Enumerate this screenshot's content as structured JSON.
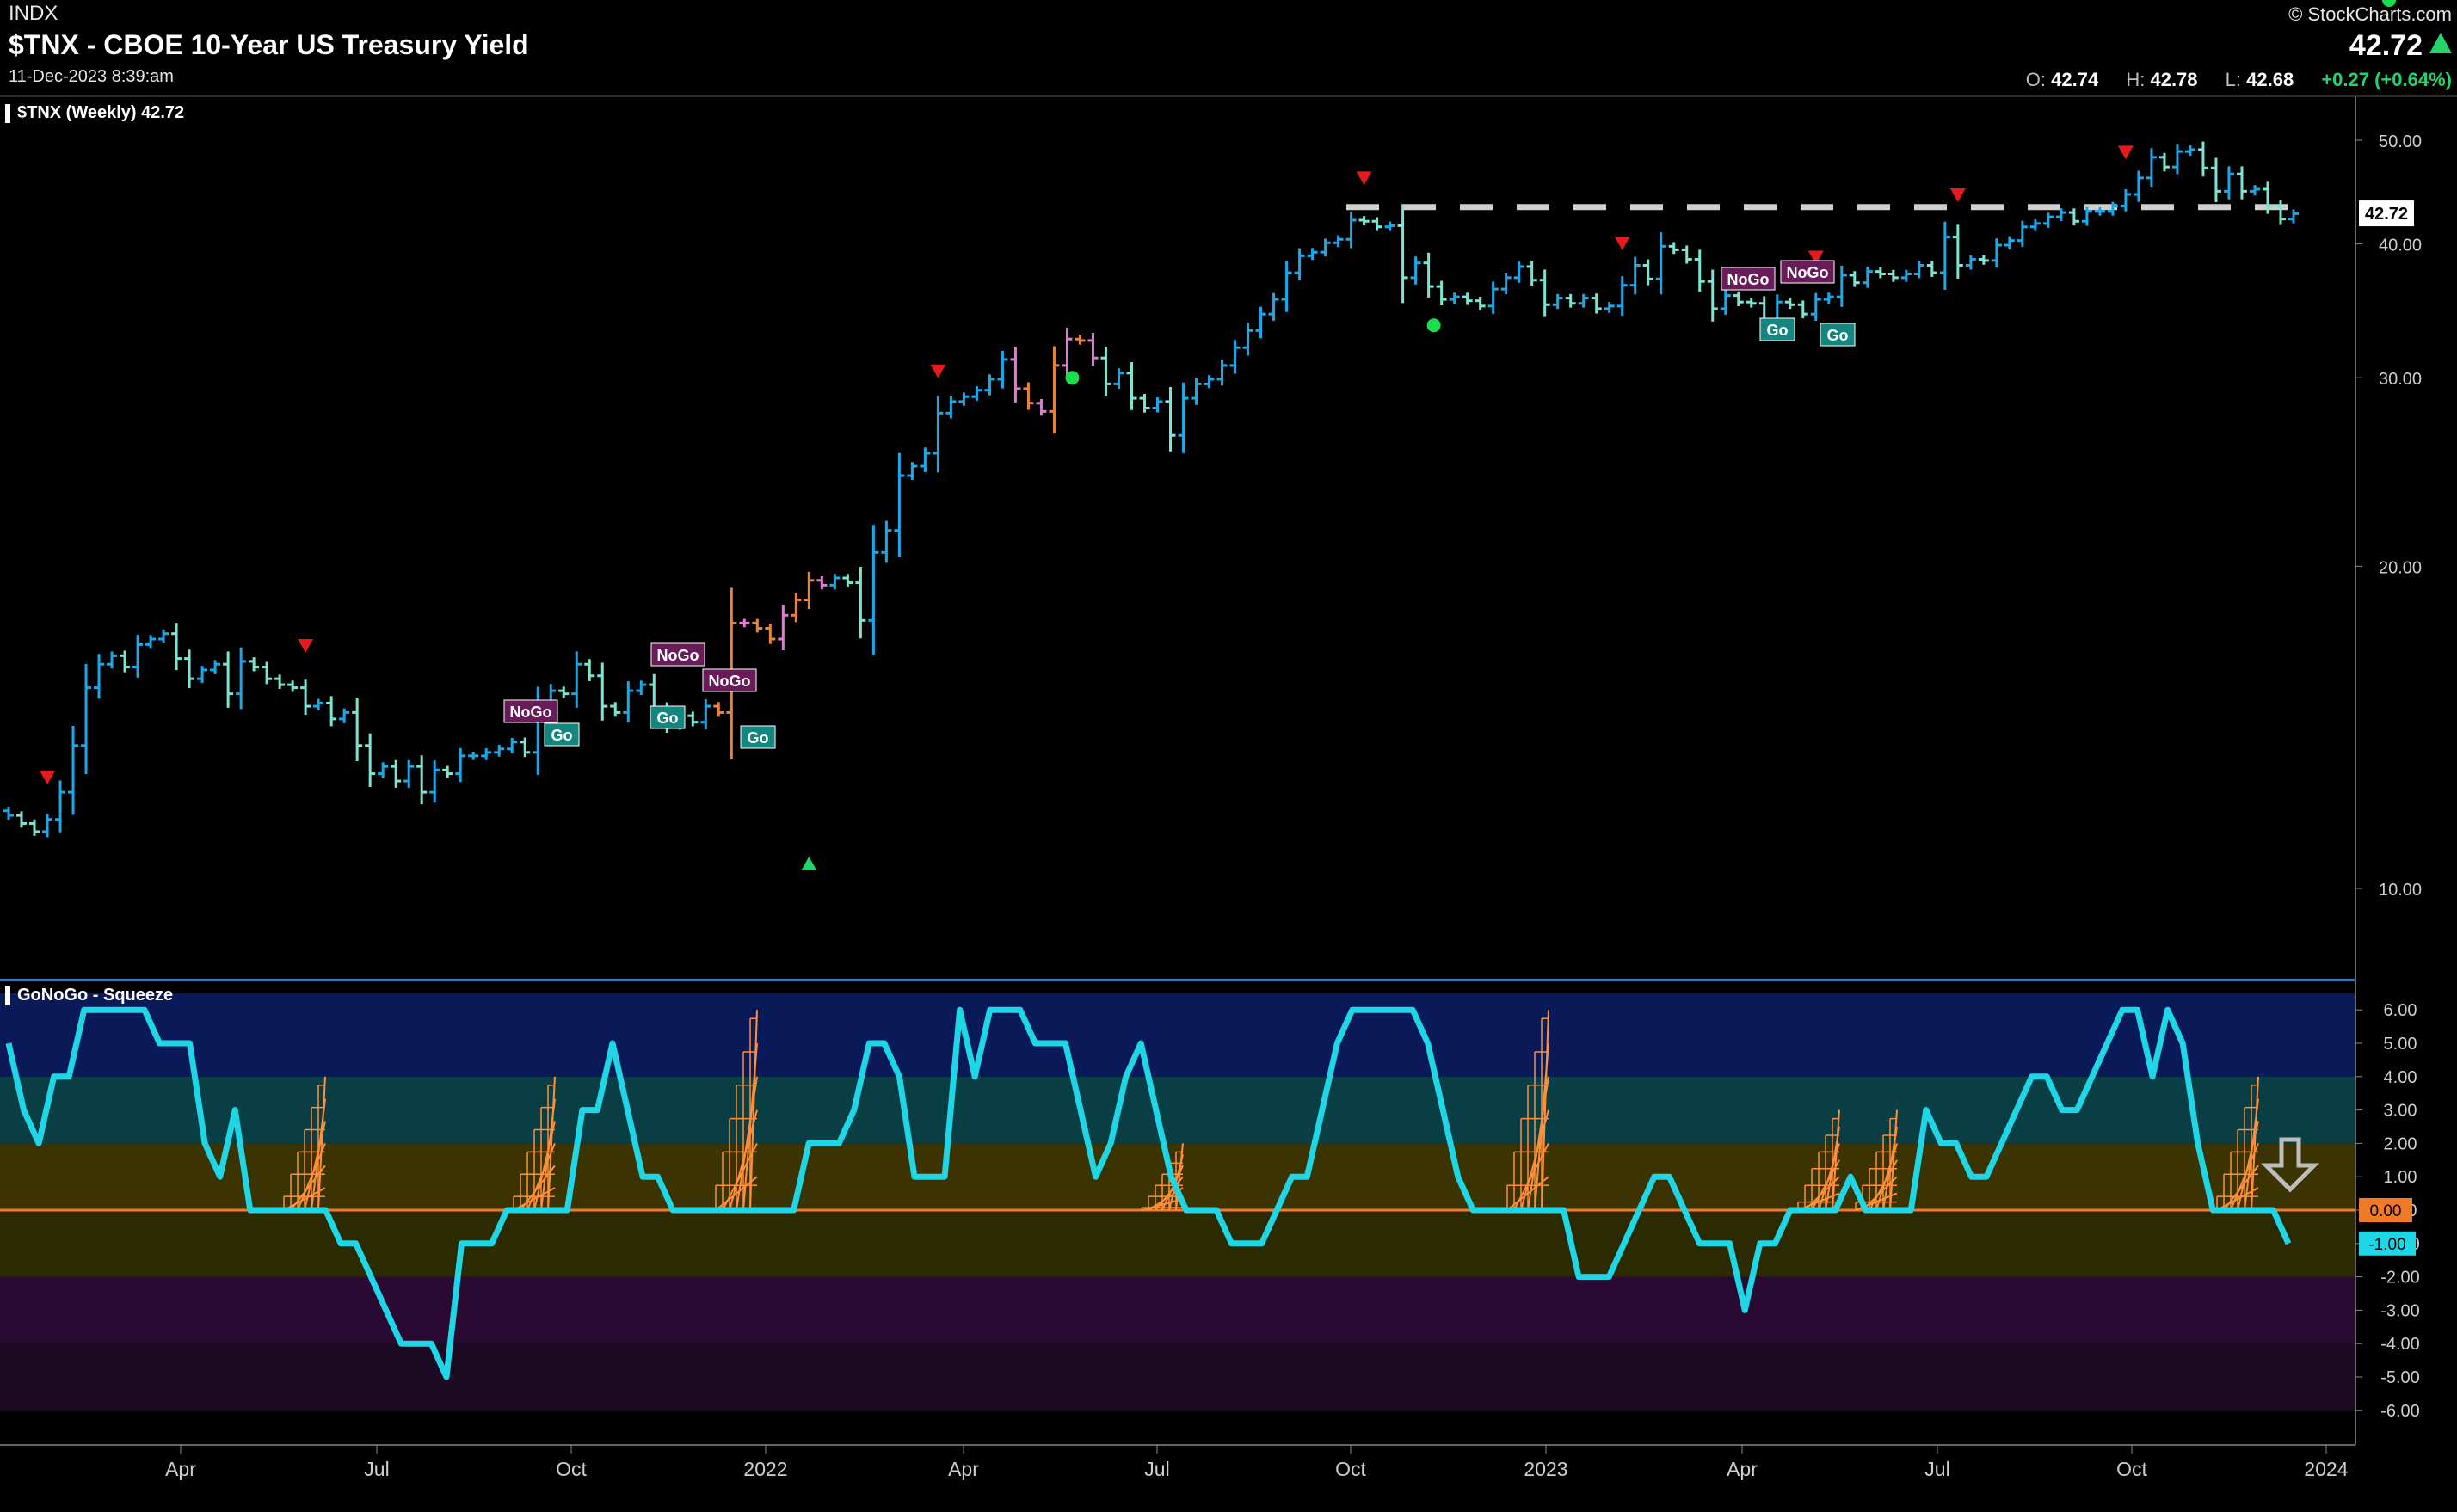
{
  "header": {
    "exchange": "INDX",
    "title": "$TNX - CBOE 10-Year US Treasury Yield",
    "timestamp": "11-Dec-2023 8:39:am",
    "brand": "© StockCharts.com",
    "last": "42.72",
    "open_label": "O:",
    "open": "42.74",
    "high_label": "H:",
    "high": "42.78",
    "low_label": "L:",
    "low": "42.68",
    "change": "+0.27 (+0.64%)"
  },
  "colors": {
    "go_strong": "#1aa8e8",
    "go_weak": "#7fe3d0",
    "nogo_weak": "#e8833a",
    "nogo_strong": "#e27ad6",
    "amber": "#ff8f3a",
    "osc": "#1fd6e6",
    "zero_line": "#f07a2a",
    "up_marker": "#22d46b",
    "down_marker": "#e51b1b",
    "go_dot": "#19e04a",
    "nogo_badge": "#6a1b5a",
    "go_badge": "#13877f",
    "resistance": "#cfcfcf"
  },
  "chart_data": [
    {
      "type": "candlestick",
      "label": "$TNX (Weekly) 42.72",
      "title": "$TNX - CBOE 10-Year US Treasury Yield",
      "log_scale": true,
      "yticks": [
        10,
        20,
        30,
        40,
        50
      ],
      "ytick_labels": [
        "10.00",
        "20.00",
        "30.00",
        "40.00",
        "50.00"
      ],
      "last_label": "42.72",
      "xticks": [
        "Apr",
        "Jul",
        "Oct",
        "2022",
        "Apr",
        "Jul",
        "Oct",
        "2023",
        "Apr",
        "Jul",
        "Oct",
        "2024"
      ],
      "resistance_level": 43.3,
      "closes": [
        11.7,
        11.5,
        11.3,
        11.6,
        12.3,
        13.6,
        15.4,
        16.2,
        16.5,
        16.1,
        16.9,
        17.1,
        17.3,
        16.4,
        15.7,
        16.0,
        16.2,
        15.2,
        16.3,
        16.1,
        15.7,
        15.5,
        15.4,
        14.8,
        14.9,
        14.4,
        14.6,
        13.6,
        12.8,
        13.0,
        12.6,
        13.0,
        12.3,
        12.9,
        12.8,
        13.3,
        13.3,
        13.4,
        13.5,
        13.7,
        13.4,
        14.8,
        15.3,
        15.2,
        16.2,
        15.8,
        14.8,
        14.6,
        15.3,
        15.5,
        14.7,
        14.2,
        14.5,
        14.3,
        14.8,
        14.6,
        17.7,
        17.7,
        17.5,
        17.1,
        18.0,
        18.6,
        19.4,
        19.2,
        19.5,
        19.3,
        17.8,
        20.6,
        21.6,
        24.3,
        24.8,
        25.5,
        27.8,
        28.5,
        28.8,
        29.2,
        29.9,
        31.2,
        29.3,
        28.4,
        27.9,
        30.8,
        32.6,
        32.5,
        31.3,
        29.6,
        30.3,
        28.7,
        28.1,
        28.5,
        26.5,
        28.7,
        29.6,
        29.9,
        30.8,
        32.0,
        33.2,
        34.4,
        35.5,
        37.6,
        39.0,
        39.3,
        40.1,
        40.4,
        42.1,
        42.0,
        41.5,
        41.6,
        37.2,
        38.4,
        36.5,
        35.5,
        35.7,
        35.4,
        35.0,
        36.3,
        37.2,
        38.1,
        37.0,
        35.1,
        35.6,
        35.2,
        35.6,
        34.8,
        35.0,
        36.6,
        38.2,
        37.1,
        39.8,
        39.5,
        38.7,
        36.9,
        34.8,
        35.8,
        35.3,
        35.2,
        34.0,
        35.3,
        35.1,
        34.4,
        35.5,
        35.7,
        37.4,
        36.8,
        37.7,
        37.5,
        37.2,
        37.5,
        38.2,
        37.6,
        40.6,
        38.2,
        38.7,
        38.6,
        39.9,
        40.3,
        41.5,
        41.8,
        42.4,
        42.8,
        42.0,
        42.9,
        42.9,
        43.4,
        44.5,
        46.1,
        48.2,
        47.2,
        48.8,
        49.0,
        47.1,
        44.8,
        46.5,
        44.8,
        45.0,
        43.4,
        42.2,
        42.7
      ],
      "signals": {
        "up_triangles": [
          "2021-07 swing low"
        ],
        "down_triangles": [
          "2021-01",
          "2021-03",
          "2021-10",
          "2022-02",
          "2022-03",
          "2022-04",
          "2022-05",
          "2022-06",
          "2022-11",
          "2023-10",
          "2023-11"
        ],
        "badges": [
          "NoGo",
          "Go",
          "NoGo",
          "Go",
          "NoGo",
          "Go",
          "NoGo",
          "Go",
          "NoGo",
          "Go"
        ]
      }
    },
    {
      "type": "line",
      "label": "GoNoGo - Squeeze",
      "yticks": [
        6,
        5,
        4,
        3,
        2,
        1,
        0,
        -1,
        -2,
        -3,
        -4,
        -5,
        -6
      ],
      "ytick_labels": [
        "6.00",
        "5.00",
        "4.00",
        "3.00",
        "2.00",
        "1.00",
        "0.00",
        "-1.00",
        "-2.00",
        "-3.00",
        "-4.00",
        "-5.00",
        "-6.00"
      ],
      "ylim": [
        -6.5,
        6.5
      ],
      "zero_label": "0.00",
      "last_label": "-1.00",
      "values": [
        5,
        3,
        2,
        4,
        4,
        6,
        6,
        6,
        6,
        6,
        5,
        5,
        5,
        2,
        1,
        3,
        0,
        0,
        0,
        0,
        0,
        0,
        -1,
        -1,
        -2,
        -3,
        -4,
        -4,
        -4,
        -5,
        -1,
        -1,
        -1,
        0,
        0,
        0,
        0,
        0,
        3,
        3,
        5,
        3,
        1,
        1,
        0,
        0,
        0,
        0,
        0,
        0,
        0,
        0,
        0,
        2,
        2,
        2,
        3,
        5,
        5,
        4,
        1,
        1,
        1,
        6,
        4,
        6,
        6,
        6,
        5,
        5,
        5,
        3,
        1,
        2,
        4,
        5,
        3,
        1,
        0,
        0,
        0,
        -1,
        -1,
        -1,
        0,
        1,
        1,
        3,
        5,
        6,
        6,
        6,
        6,
        6,
        5,
        3,
        1,
        0,
        0,
        0,
        0,
        0,
        0,
        0,
        -2,
        -2,
        -2,
        -1,
        0,
        1,
        1,
        0,
        -1,
        -1,
        -1,
        -3,
        -1,
        -1,
        0,
        0,
        0,
        0,
        1,
        0,
        0,
        0,
        0,
        3,
        2,
        2,
        1,
        1,
        2,
        3,
        4,
        4,
        3,
        3,
        4,
        5,
        6,
        6,
        4,
        6,
        5,
        2,
        0,
        0,
        0,
        0,
        0,
        -1
      ],
      "squeeze_zones": [
        "2021-06",
        "2021-09",
        "2021-12",
        "2022-07",
        "2023-01",
        "2023-05",
        "2023-11"
      ]
    }
  ]
}
